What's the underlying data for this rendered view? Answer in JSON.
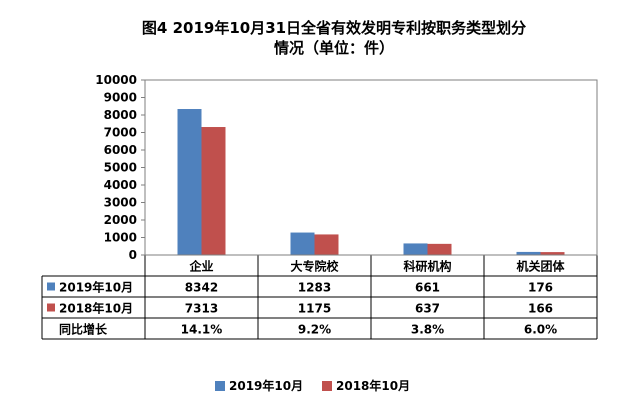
{
  "chart_data": {
    "type": "bar",
    "title_line1": "图4  2019年10月31日全省有效发明专利按职务类型划分",
    "title_line2": "情况（单位：件）",
    "categories": [
      "企业",
      "大专院校",
      "科研机构",
      "机关团体"
    ],
    "series": [
      {
        "name": "2019年10月",
        "values": [
          8342,
          1283,
          661,
          176
        ],
        "color": "#4F81BD"
      },
      {
        "name": "2018年10月",
        "values": [
          7313,
          1175,
          637,
          166
        ],
        "color": "#C0504D"
      }
    ],
    "yoy": {
      "label": "同比增长",
      "values": [
        "14.1%",
        "9.2%",
        "3.8%",
        "6.0%"
      ]
    },
    "y_ticks": [
      "0",
      "1000",
      "2000",
      "3000",
      "4000",
      "5000",
      "6000",
      "7000",
      "8000",
      "9000",
      "10000"
    ],
    "ylim": [
      0,
      10000
    ],
    "legend_position": "bottom",
    "grid": false
  }
}
